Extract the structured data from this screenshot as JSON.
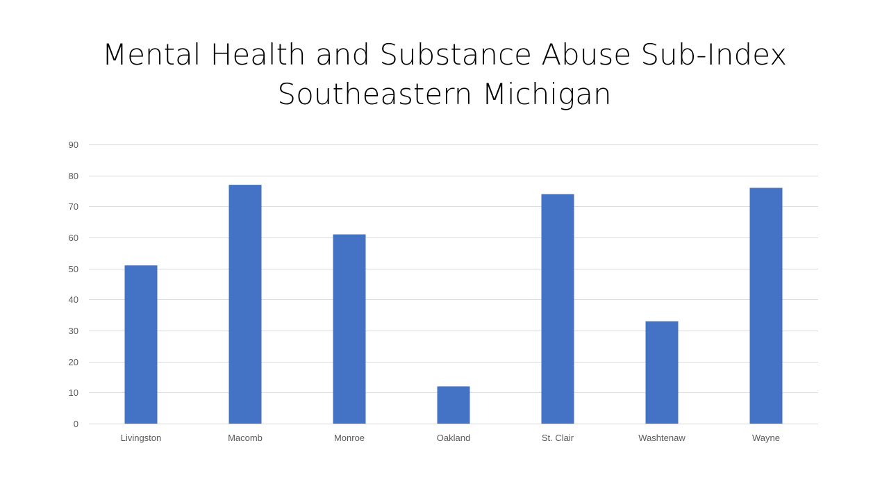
{
  "slide": {
    "title_line1": "Mental Health and Substance Abuse Sub-Index",
    "title_line2": "Southeastern Michigan"
  },
  "colors": {
    "bar": "#4472c4",
    "gridline": "#d9d9d9",
    "axis_text": "#595959",
    "background": "#ffffff"
  },
  "chart_data": {
    "type": "bar",
    "title": "Mental Health and Substance Abuse Sub-Index Southeastern Michigan",
    "categories": [
      "Livingston",
      "Macomb",
      "Monroe",
      "Oakland",
      "St. Clair",
      "Washtenaw",
      "Wayne"
    ],
    "values": [
      51,
      77,
      61,
      12,
      74,
      33,
      76
    ],
    "yticks": [
      0,
      10,
      20,
      30,
      40,
      50,
      60,
      70,
      80,
      90
    ],
    "ylim": [
      0,
      90
    ],
    "xlabel": "",
    "ylabel": "",
    "grid": true,
    "legend": "none"
  }
}
